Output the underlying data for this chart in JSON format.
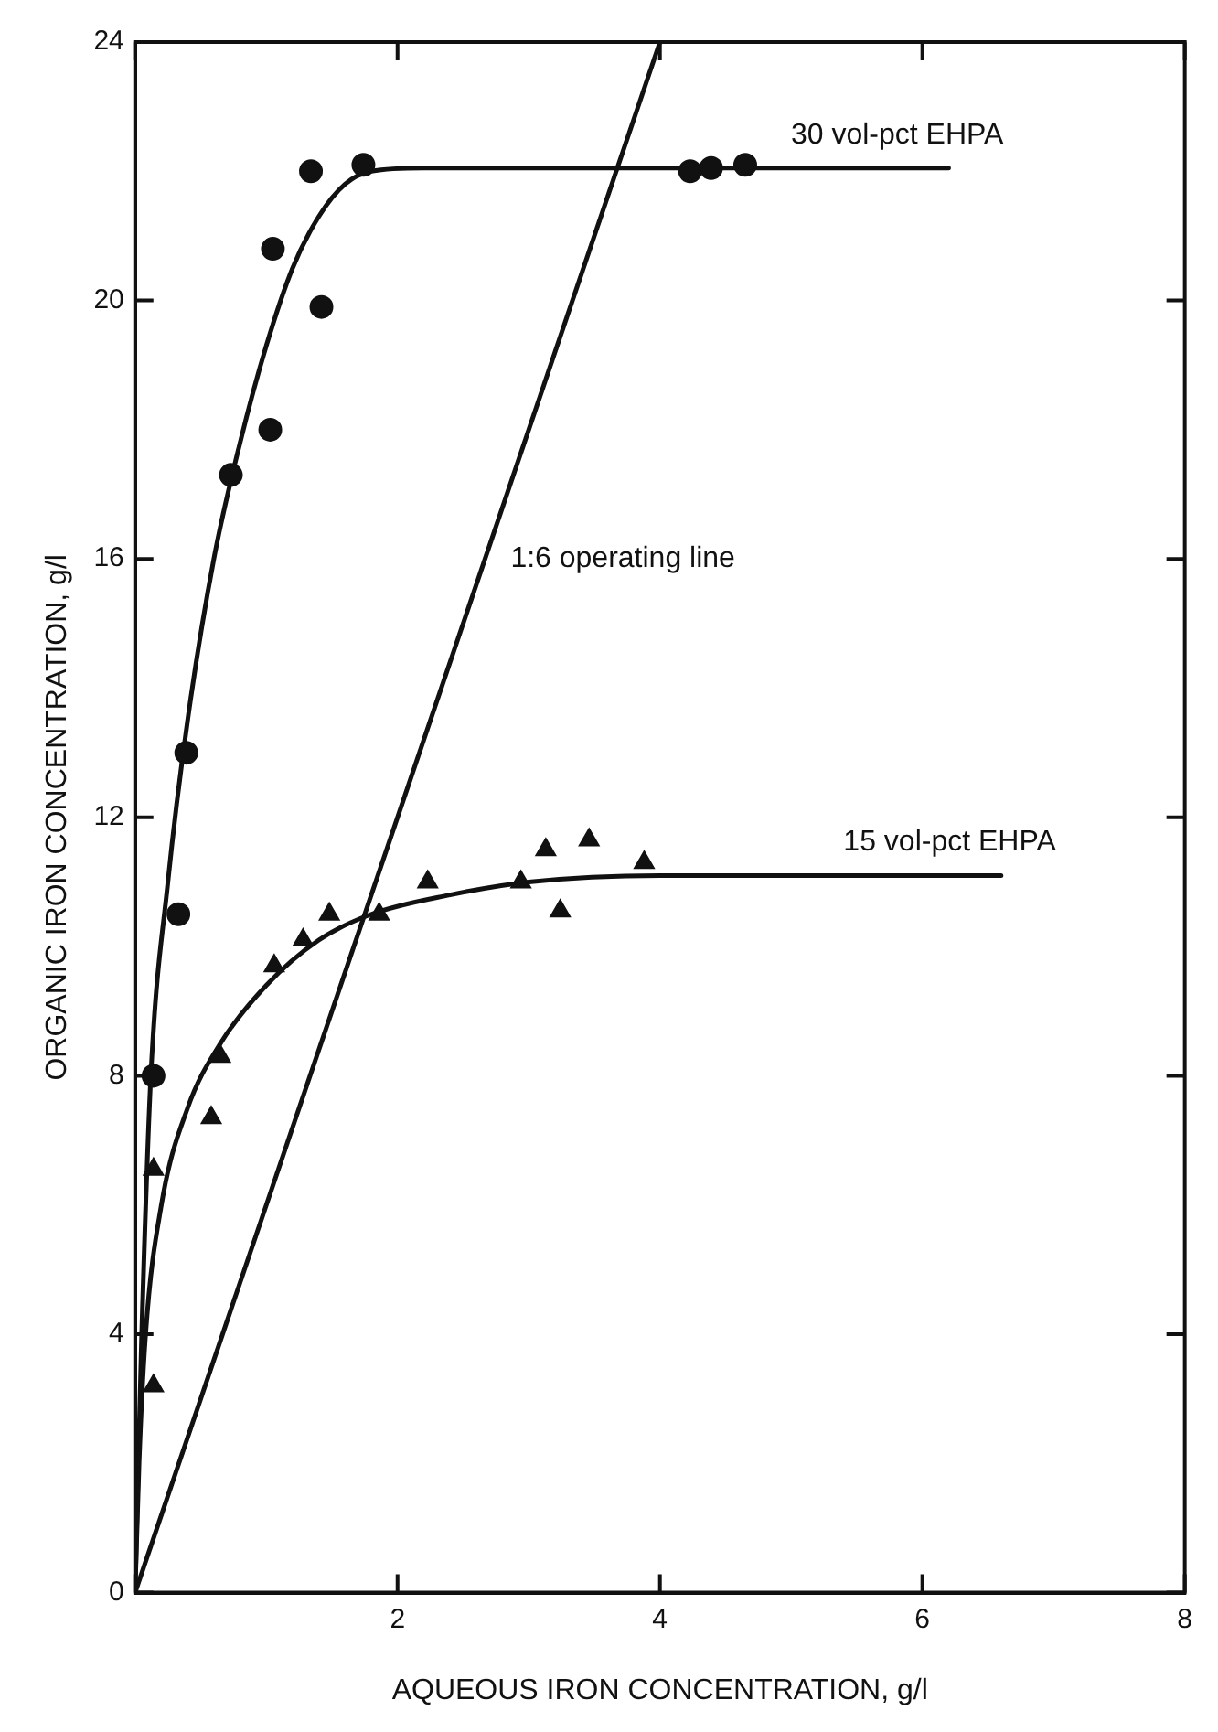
{
  "chart_data": {
    "type": "scatter",
    "xlabel": "AQUEOUS IRON CONCENTRATION, g/l",
    "ylabel": "ORGANIC IRON CONCENTRATION, g/l",
    "xlim": [
      0,
      8
    ],
    "ylim": [
      0,
      24
    ],
    "xticks": [
      {
        "value": 0,
        "label": null
      },
      2,
      4,
      6,
      8
    ],
    "yticks": [
      0,
      4,
      8,
      12,
      16,
      20,
      24
    ],
    "grid": false,
    "legend": false,
    "series": [
      {
        "type": "scatter",
        "marker": "circle",
        "color": "#111111",
        "x": [
          0.14,
          0.33,
          0.39,
          0.73,
          1.03,
          1.05,
          1.34,
          1.42,
          1.74,
          4.23,
          4.39,
          4.65
        ],
        "values": [
          8.0,
          10.5,
          13.0,
          17.3,
          18.0,
          20.8,
          22.0,
          19.9,
          22.1,
          22.0,
          22.05,
          22.1
        ]
      },
      {
        "type": "line",
        "name": "30 vol-pct EHPA",
        "marker": "none",
        "color": "#111111",
        "x": [
          0,
          0.05,
          0.12,
          0.25,
          0.4,
          0.6,
          0.8,
          1.0,
          1.2,
          1.4,
          1.6,
          1.8,
          2.2,
          6.2
        ],
        "values": [
          0,
          4,
          8,
          11,
          13.5,
          16,
          17.8,
          19.3,
          20.5,
          21.3,
          21.8,
          22.0,
          22.05,
          22.05
        ]
      },
      {
        "type": "scatter",
        "marker": "triangle",
        "color": "#111111",
        "x": [
          0.14,
          0.14,
          0.58,
          0.65,
          1.06,
          1.28,
          1.48,
          1.86,
          2.23,
          2.94,
          3.13,
          3.24,
          3.46,
          3.88
        ],
        "values": [
          3.2,
          6.55,
          7.35,
          8.3,
          9.7,
          10.1,
          10.5,
          10.5,
          11.0,
          11.0,
          11.5,
          10.55,
          11.65,
          11.3
        ]
      },
      {
        "type": "line",
        "name": "15 vol-pct EHPA",
        "marker": "none",
        "color": "#111111",
        "x": [
          0,
          0.03,
          0.08,
          0.2,
          0.4,
          0.65,
          1.0,
          1.4,
          1.8,
          2.4,
          3.0,
          4.0,
          6.6
        ],
        "values": [
          0,
          2,
          4,
          6,
          7.5,
          8.5,
          9.4,
          10.1,
          10.5,
          10.8,
          11.0,
          11.1,
          11.1
        ]
      },
      {
        "type": "line",
        "name": "1:6 operating line",
        "marker": "none",
        "color": "#111111",
        "x": [
          0,
          4
        ],
        "values": [
          0,
          24
        ]
      }
    ]
  }
}
